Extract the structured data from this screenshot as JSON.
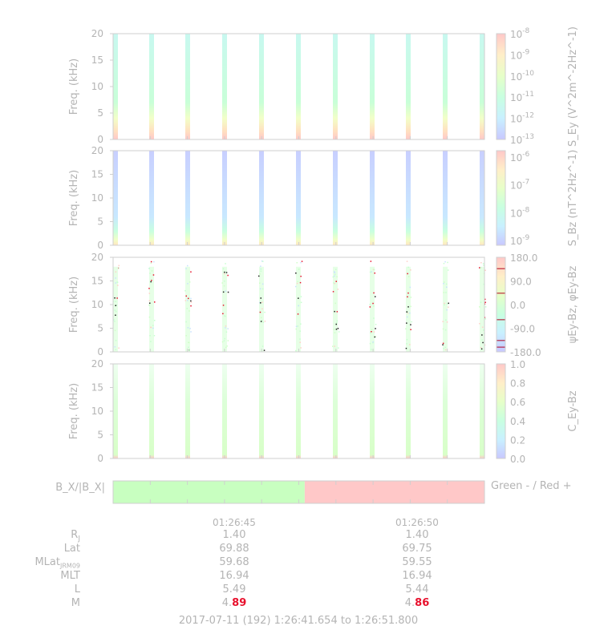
{
  "chart_data": [
    {
      "type": "heatmap",
      "ylabel": "Freq. (kHz)",
      "ylim": [
        0,
        20
      ],
      "yticks": [
        "0",
        "5",
        "10",
        "15",
        "20"
      ],
      "colorbar_label": "S_Ey (V^2m^-2Hz^-1)",
      "colorbar_ticks": [
        "10^-8",
        "10^-9",
        "10^-10",
        "10^-11",
        "10^-12",
        "10^-13"
      ],
      "scale": "log"
    },
    {
      "type": "heatmap",
      "ylabel": "Freq. (kHz)",
      "ylim": [
        0,
        20
      ],
      "yticks": [
        "0",
        "5",
        "10",
        "15",
        "20"
      ],
      "colorbar_label": "S_Bz (nT^2Hz^-1)",
      "colorbar_ticks": [
        "10^-6",
        "10^-7",
        "10^-8",
        "10^-9"
      ],
      "scale": "log"
    },
    {
      "type": "heatmap",
      "ylabel": "Freq. (kHz)",
      "ylim": [
        0,
        20
      ],
      "yticks": [
        "0",
        "5",
        "10",
        "15",
        "20"
      ],
      "colorbar_label": "ψEy-Bz, φEy-Bz",
      "colorbar_ticks": [
        "180.0",
        "90.0",
        "0.0",
        "-90.0",
        "-180.0"
      ]
    },
    {
      "type": "heatmap",
      "ylabel": "Freq. (kHz)",
      "ylim": [
        0,
        20
      ],
      "yticks": [
        "0",
        "5",
        "10",
        "15",
        "20"
      ],
      "colorbar_label": "C_Ey-Bz",
      "colorbar_ticks": [
        "1.0",
        "0.8",
        "0.6",
        "0.4",
        "0.2",
        "0.0"
      ]
    }
  ],
  "bx_bar": {
    "label": "B_X/|B_X|",
    "legend": "Green - / Red +",
    "green_fraction": 0.516,
    "green_color": "#c8ffc0",
    "red_color": "#ffc8c8"
  },
  "time_ticks": [
    "01:26:45",
    "01:26:50"
  ],
  "ephemeris": {
    "labels": [
      "RJ",
      "Lat",
      "MLatJRM09",
      "MLT",
      "L",
      "M"
    ],
    "columns": [
      {
        "RJ": "1.40",
        "Lat": "69.88",
        "MLat": "59.68",
        "MLT": "16.94",
        "L": "5.49",
        "M_prefix": "4.",
        "M_suffix": "89"
      },
      {
        "RJ": "1.40",
        "Lat": "69.75",
        "MLat": "59.55",
        "MLT": "16.94",
        "L": "5.44",
        "M_prefix": "4.",
        "M_suffix": "86"
      }
    ]
  },
  "footer": "2017-07-11 (192) 1:26:41.654 to 1:26:51.800"
}
